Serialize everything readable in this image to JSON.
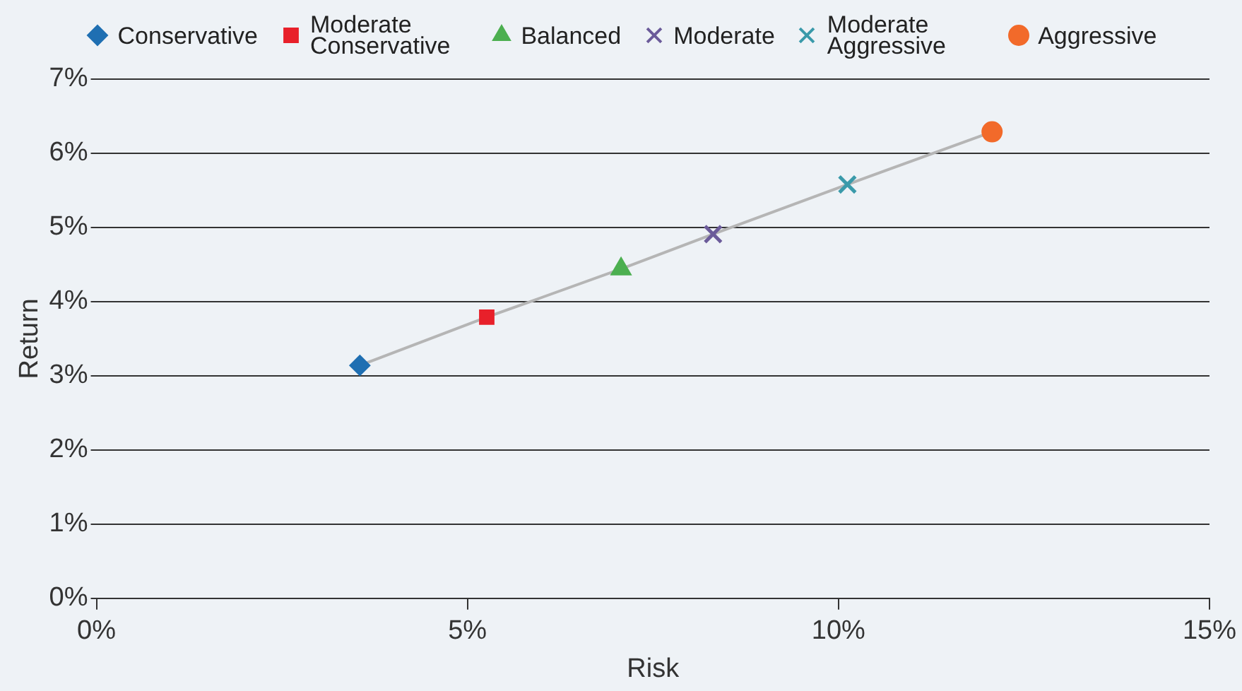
{
  "chart_data": {
    "type": "scatter",
    "xlabel": "Risk",
    "ylabel": "Return",
    "xlim": [
      0,
      15
    ],
    "xticks": [
      {
        "value": 0,
        "label": "0%"
      },
      {
        "value": 5,
        "label": "5%"
      },
      {
        "value": 10,
        "label": "10%"
      },
      {
        "value": 15,
        "label": "15%"
      }
    ],
    "ylim": [
      0,
      7
    ],
    "yticks": [
      {
        "value": 0,
        "label": "0%"
      },
      {
        "value": 1,
        "label": "1%"
      },
      {
        "value": 2,
        "label": "2%"
      },
      {
        "value": 3,
        "label": "3%"
      },
      {
        "value": 4,
        "label": "4%"
      },
      {
        "value": 5,
        "label": "5%"
      },
      {
        "value": 6,
        "label": "6%"
      },
      {
        "value": 7,
        "label": "7%"
      }
    ],
    "grid": "y",
    "legend": "top",
    "series": [
      {
        "type": "line",
        "color": "#b5b5b5",
        "marker": "none",
        "x": [
          3.55,
          5.26,
          7.07,
          8.31,
          10.12,
          12.07
        ],
        "values": [
          3.14,
          3.79,
          4.44,
          4.91,
          5.58,
          6.29
        ]
      },
      {
        "name": "Conservative",
        "color": "#1f6fb2",
        "marker": "diamond",
        "x": [
          3.55
        ],
        "values": [
          3.14
        ]
      },
      {
        "name": "Moderate Conservative",
        "color": "#e8202a",
        "marker": "square",
        "x": [
          5.26
        ],
        "values": [
          3.79
        ]
      },
      {
        "name": "Balanced",
        "color": "#4caf50",
        "marker": "triangle",
        "x": [
          7.07
        ],
        "values": [
          4.44
        ]
      },
      {
        "name": "Moderate",
        "color": "#6b5b9a",
        "marker": "cross",
        "x": [
          8.31
        ],
        "values": [
          4.91
        ]
      },
      {
        "name": "Moderate Aggressive",
        "color": "#3a9aaa",
        "marker": "cross",
        "x": [
          10.12
        ],
        "values": [
          5.58
        ]
      },
      {
        "name": "Aggressive",
        "color": "#f26a2a",
        "marker": "circle",
        "x": [
          12.07
        ],
        "values": [
          6.29
        ]
      }
    ]
  }
}
